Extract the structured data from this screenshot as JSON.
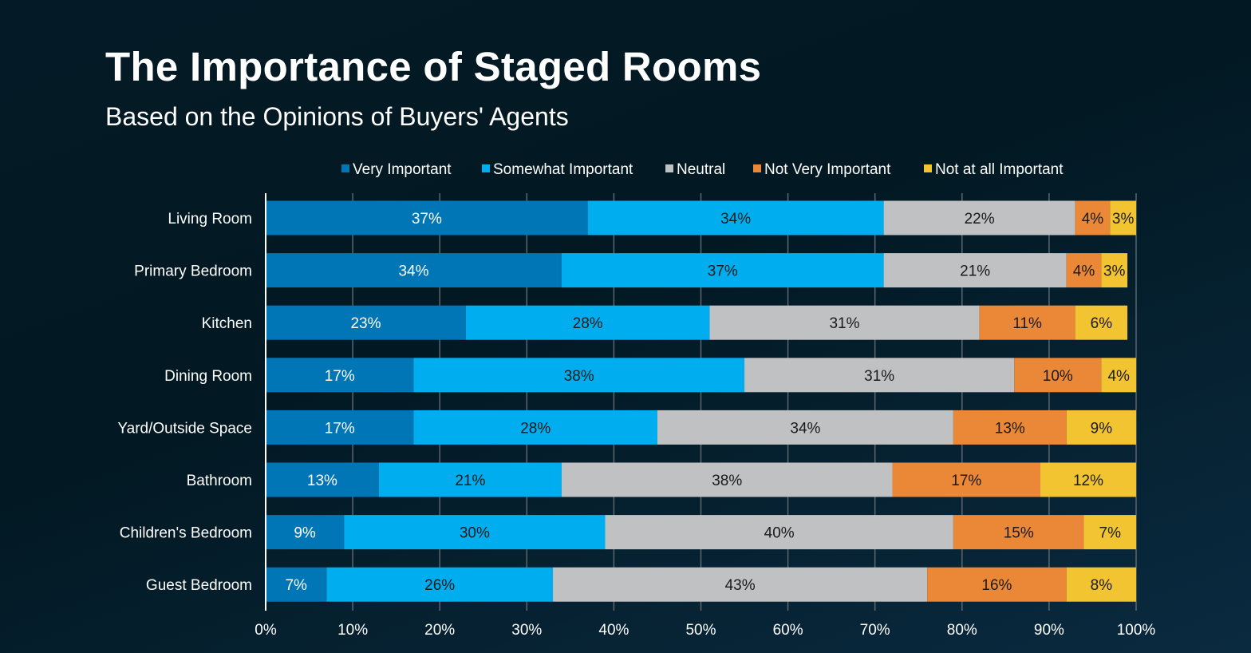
{
  "chart_data": {
    "type": "bar",
    "orientation": "horizontal",
    "stacked": true,
    "title": "The Importance of Staged Rooms",
    "subtitle": "Based on the Opinions of Buyers' Agents",
    "xlabel": "",
    "ylabel": "",
    "xlim": [
      0,
      100
    ],
    "xticks": [
      "0%",
      "10%",
      "20%",
      "30%",
      "40%",
      "50%",
      "60%",
      "70%",
      "80%",
      "90%",
      "100%"
    ],
    "grid": true,
    "legend_position": "top",
    "categories": [
      "Living Room",
      "Primary Bedroom",
      "Kitchen",
      "Dining Room",
      "Yard/Outside Space",
      "Bathroom",
      "Children's Bedroom",
      "Guest Bedroom"
    ],
    "series": [
      {
        "name": "Very Important",
        "color": "#0076b6",
        "label_color": "#ffffff",
        "values": [
          37,
          34,
          23,
          17,
          17,
          13,
          9,
          7
        ]
      },
      {
        "name": "Somewhat Important",
        "color": "#00aeef",
        "label_color": "#1a1a1a",
        "values": [
          34,
          37,
          28,
          38,
          28,
          21,
          30,
          26
        ]
      },
      {
        "name": "Neutral",
        "color": "#bfc1c2",
        "label_color": "#1a1a1a",
        "values": [
          22,
          21,
          31,
          31,
          34,
          38,
          40,
          43
        ]
      },
      {
        "name": "Not Very Important",
        "color": "#ea8838",
        "label_color": "#1a1a1a",
        "values": [
          4,
          4,
          11,
          10,
          13,
          17,
          15,
          16
        ]
      },
      {
        "name": "Not at all Important",
        "color": "#f3c431",
        "label_color": "#1a1a1a",
        "values": [
          3,
          3,
          6,
          4,
          9,
          12,
          7,
          8
        ]
      }
    ]
  }
}
